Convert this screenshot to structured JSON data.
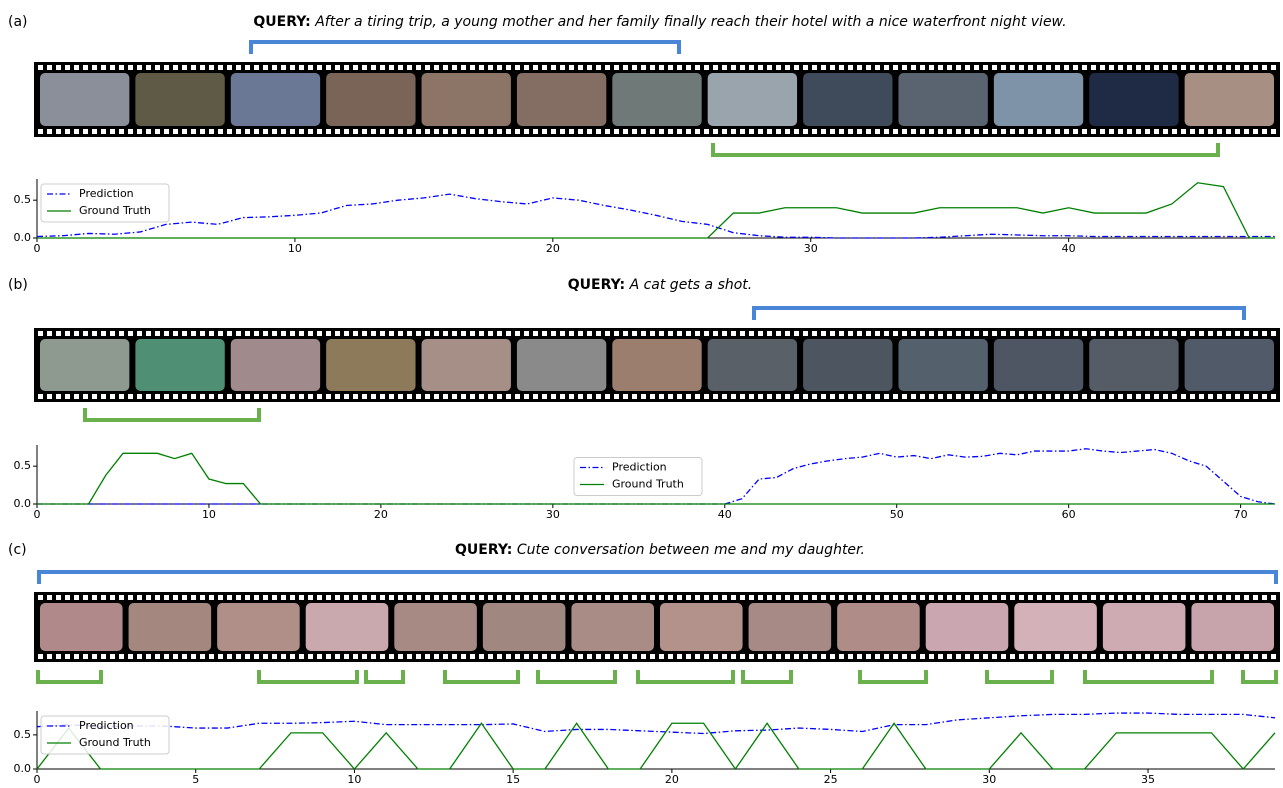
{
  "chart_data": [
    {
      "type": "line",
      "panel": "(a)",
      "title_label": "QUERY:",
      "title": "After a tiring trip, a young mother and her family finally reach their hotel with a nice waterfront night view.",
      "x": [
        0,
        1,
        2,
        3,
        4,
        5,
        6,
        7,
        8,
        9,
        10,
        11,
        12,
        13,
        14,
        15,
        16,
        17,
        18,
        19,
        20,
        21,
        22,
        23,
        24,
        25,
        26,
        27,
        28,
        29,
        30,
        31,
        32,
        33,
        34,
        35,
        36,
        37,
        38,
        39,
        40,
        41,
        42,
        43,
        44,
        45,
        46,
        47,
        48
      ],
      "series": [
        {
          "name": "Prediction",
          "color": "#0000ff",
          "style": "dashdot",
          "values": [
            0.02,
            0.03,
            0.06,
            0.05,
            0.08,
            0.18,
            0.21,
            0.18,
            0.27,
            0.28,
            0.3,
            0.33,
            0.43,
            0.45,
            0.5,
            0.53,
            0.58,
            0.52,
            0.48,
            0.45,
            0.53,
            0.5,
            0.43,
            0.37,
            0.3,
            0.22,
            0.18,
            0.07,
            0.03,
            0.01,
            0.01,
            0,
            0,
            0,
            0,
            0.01,
            0.03,
            0.05,
            0.04,
            0.03,
            0.03,
            0.02,
            0.02,
            0.02,
            0.02,
            0.02,
            0.02,
            0.02,
            0.02
          ]
        },
        {
          "name": "Ground Truth",
          "color": "#008000",
          "style": "solid",
          "values": [
            0,
            0,
            0,
            0,
            0,
            0,
            0,
            0,
            0,
            0,
            0,
            0,
            0,
            0,
            0,
            0,
            0,
            0,
            0,
            0,
            0,
            0,
            0,
            0,
            0,
            0,
            0,
            0.33,
            0.33,
            0.4,
            0.4,
            0.4,
            0.33,
            0.33,
            0.33,
            0.4,
            0.4,
            0.4,
            0.4,
            0.33,
            0.4,
            0.33,
            0.33,
            0.33,
            0.45,
            0.73,
            0.68,
            0,
            0
          ]
        }
      ],
      "xlim": [
        0,
        48
      ],
      "xticks": [
        0,
        10,
        20,
        30,
        40
      ],
      "ylim": [
        0,
        0.78
      ],
      "yticks": [
        {
          "value": 0,
          "label": "0.0"
        },
        0.5
      ],
      "legend": "upper left"
    },
    {
      "type": "line",
      "panel": "(b)",
      "title_label": "QUERY:",
      "title": "A cat gets a shot.",
      "x": [
        0,
        1,
        2,
        3,
        4,
        5,
        6,
        7,
        8,
        9,
        10,
        11,
        12,
        13,
        14,
        15,
        16,
        17,
        18,
        19,
        20,
        21,
        22,
        23,
        24,
        25,
        26,
        27,
        28,
        29,
        30,
        31,
        32,
        33,
        34,
        35,
        36,
        37,
        38,
        39,
        40,
        41,
        42,
        43,
        44,
        45,
        46,
        47,
        48,
        49,
        50,
        51,
        52,
        53,
        54,
        55,
        56,
        57,
        58,
        59,
        60,
        61,
        62,
        63,
        64,
        65,
        66,
        67,
        68,
        69,
        70,
        71,
        72
      ],
      "series": [
        {
          "name": "Prediction",
          "color": "#0000ff",
          "style": "dashdot",
          "values": [
            0,
            0,
            0,
            0,
            0,
            0,
            0,
            0,
            0,
            0,
            0,
            0,
            0,
            0,
            0,
            0,
            0,
            0,
            0,
            0,
            0,
            0,
            0,
            0,
            0,
            0,
            0,
            0,
            0,
            0,
            0,
            0,
            0,
            0,
            0,
            0,
            0,
            0,
            0,
            0,
            0,
            0.07,
            0.33,
            0.35,
            0.47,
            0.53,
            0.57,
            0.6,
            0.62,
            0.67,
            0.62,
            0.64,
            0.6,
            0.65,
            0.62,
            0.63,
            0.67,
            0.65,
            0.7,
            0.7,
            0.7,
            0.73,
            0.7,
            0.68,
            0.7,
            0.72,
            0.67,
            0.57,
            0.5,
            0.3,
            0.1,
            0.03,
            0
          ]
        },
        {
          "name": "Ground Truth",
          "color": "#008000",
          "style": "solid",
          "values": [
            0,
            0,
            0,
            0,
            0.38,
            0.67,
            0.67,
            0.67,
            0.6,
            0.67,
            0.33,
            0.27,
            0.27,
            0,
            0,
            0,
            0,
            0,
            0,
            0,
            0,
            0,
            0,
            0,
            0,
            0,
            0,
            0,
            0,
            0,
            0,
            0,
            0,
            0,
            0,
            0,
            0,
            0,
            0,
            0,
            0,
            0,
            0,
            0,
            0,
            0,
            0,
            0,
            0,
            0,
            0,
            0,
            0,
            0,
            0,
            0,
            0,
            0,
            0,
            0,
            0,
            0,
            0,
            0,
            0,
            0,
            0,
            0,
            0,
            0,
            0,
            0,
            0
          ]
        }
      ],
      "xlim": [
        0,
        72
      ],
      "xticks": [
        0,
        10,
        20,
        30,
        40,
        50,
        60,
        70
      ],
      "ylim": [
        0,
        0.78
      ],
      "yticks": [
        {
          "value": 0,
          "label": "0.0"
        },
        0.5
      ],
      "legend": "center"
    },
    {
      "type": "line",
      "panel": "(c)",
      "title_label": "QUERY:",
      "title": "Cute conversation between me and my daughter.",
      "x": [
        0,
        1,
        2,
        3,
        4,
        5,
        6,
        7,
        8,
        9,
        10,
        11,
        12,
        13,
        14,
        15,
        16,
        17,
        18,
        19,
        20,
        21,
        22,
        23,
        24,
        25,
        26,
        27,
        28,
        29,
        30,
        31,
        32,
        33,
        34,
        35,
        36,
        37,
        38,
        39
      ],
      "series": [
        {
          "name": "Prediction",
          "color": "#0000ff",
          "style": "dashdot",
          "values": [
            0.62,
            0.65,
            0.62,
            0.63,
            0.63,
            0.6,
            0.6,
            0.67,
            0.67,
            0.68,
            0.7,
            0.65,
            0.65,
            0.65,
            0.65,
            0.66,
            0.55,
            0.58,
            0.58,
            0.56,
            0.54,
            0.52,
            0.56,
            0.57,
            0.6,
            0.58,
            0.55,
            0.65,
            0.65,
            0.72,
            0.75,
            0.78,
            0.8,
            0.8,
            0.82,
            0.82,
            0.8,
            0.8,
            0.8,
            0.75
          ]
        },
        {
          "name": "Ground Truth",
          "color": "#008000",
          "style": "solid",
          "values": [
            0,
            0.6,
            0,
            0,
            0,
            0,
            0,
            0,
            0.53,
            0.53,
            0,
            0.53,
            0,
            0,
            0.67,
            0,
            0,
            0.67,
            0,
            0,
            0.67,
            0.67,
            0,
            0.67,
            0,
            0,
            0,
            0.67,
            0,
            0,
            0,
            0.53,
            0,
            0,
            0.53,
            0.53,
            0.53,
            0.53,
            0,
            0.53
          ]
        }
      ],
      "xlim": [
        0,
        39
      ],
      "xticks": [
        0,
        5,
        10,
        15,
        20,
        25,
        30,
        35
      ],
      "ylim": [
        0,
        0.85
      ],
      "yticks": [
        {
          "value": 0,
          "label": "0.0"
        },
        0.5
      ],
      "legend": "upper left"
    }
  ]
}
